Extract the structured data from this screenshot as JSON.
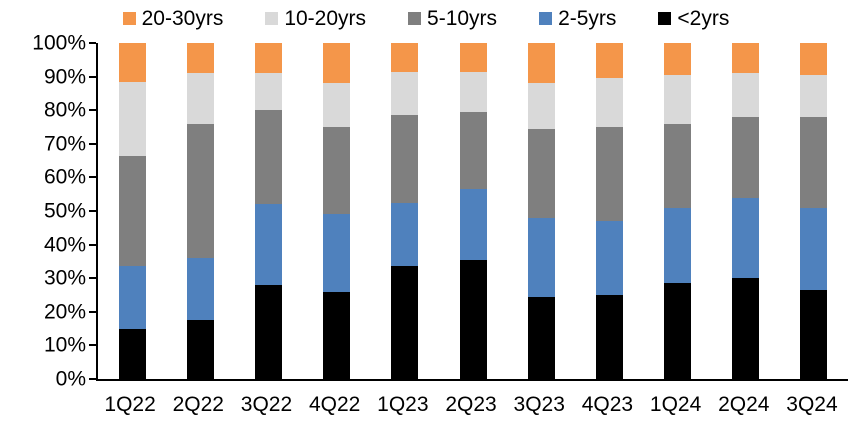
{
  "chart_data": {
    "type": "bar",
    "subtype": "stacked-100-percent",
    "title": "",
    "xlabel": "",
    "ylabel": "",
    "grid": false,
    "legend_position": "top",
    "ylim": [
      0,
      100
    ],
    "y_ticks": [
      "100%",
      "90%",
      "80%",
      "70%",
      "60%",
      "50%",
      "40%",
      "30%",
      "20%",
      "10%",
      "0%"
    ],
    "categories": [
      "1Q22",
      "2Q22",
      "3Q22",
      "4Q22",
      "1Q23",
      "2Q23",
      "3Q23",
      "4Q23",
      "1Q24",
      "2Q24",
      "3Q24"
    ],
    "series": [
      {
        "name": "<2yrs",
        "color": "#000000",
        "values": [
          15,
          17.5,
          28,
          26,
          33.5,
          35.5,
          24.5,
          25,
          28.5,
          30,
          26.5
        ]
      },
      {
        "name": "2-5yrs",
        "color": "#4F81BD",
        "values": [
          18.5,
          18.5,
          24,
          23,
          19,
          21,
          23.5,
          22,
          22.5,
          24,
          24.5
        ]
      },
      {
        "name": "5-10yrs",
        "color": "#7F7F7F",
        "values": [
          33,
          40,
          28,
          26,
          26,
          23,
          26.5,
          28,
          25,
          24,
          27
        ]
      },
      {
        "name": "10-20yrs",
        "color": "#D9D9D9",
        "values": [
          22,
          15,
          11,
          13,
          13,
          12,
          13.5,
          14.5,
          14.5,
          13,
          12.5
        ]
      },
      {
        "name": "20-30yrs",
        "color": "#F4964A",
        "values": [
          11.5,
          9,
          9,
          12,
          8.5,
          8.5,
          12,
          10.5,
          9.5,
          9,
          9.5
        ]
      }
    ],
    "legend_order": [
      "20-30yrs",
      "10-20yrs",
      "5-10yrs",
      "2-5yrs",
      "<2yrs"
    ],
    "axis_color": "#000000"
  }
}
